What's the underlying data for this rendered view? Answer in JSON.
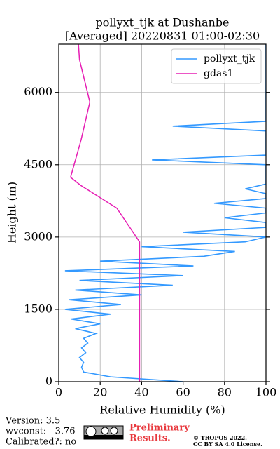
{
  "chart_data": {
    "type": "profile",
    "title": [
      "pollyxt_tjk at Dushanbe",
      "[Averaged] 20220831 01:00-02:30"
    ],
    "xlabel": "Relative Humidity (%)",
    "ylabel": "Height (m)",
    "xlim": [
      0,
      100
    ],
    "xticks": [
      0,
      20,
      40,
      60,
      80,
      100
    ],
    "ylim": [
      0,
      7000
    ],
    "yticks": [
      0,
      1500,
      3000,
      4500,
      6000
    ],
    "grid": true,
    "legend": "upper right",
    "series": [
      {
        "name": "pollyxt_tjk",
        "color": "#3399ff",
        "heights": [
          0,
          100,
          200,
          300,
          400,
          500,
          600,
          700,
          800,
          900,
          1000,
          1100,
          1200,
          1300,
          1400,
          1500,
          1600,
          1700,
          1800,
          1900,
          2000,
          2100,
          2200,
          2300,
          2400,
          2500,
          2600,
          2700,
          2800,
          2900,
          3000,
          3100,
          3200,
          3300,
          3400,
          3500,
          3600,
          3700,
          3800,
          3900,
          4000,
          4100,
          4200,
          4300,
          4400,
          4500,
          4600,
          4700,
          4800,
          4900,
          5000,
          5100,
          5200,
          5300,
          5400,
          5500,
          5600,
          5700,
          5800,
          5900,
          6000,
          6100,
          6200,
          6300,
          6400,
          6500,
          6600,
          6700,
          6800,
          6900,
          7000
        ],
        "values": [
          60,
          25,
          12,
          11,
          12,
          10,
          13,
          11,
          14,
          12,
          18,
          8,
          20,
          6,
          25,
          3,
          30,
          5,
          40,
          8,
          55,
          10,
          60,
          3,
          65,
          20,
          70,
          85,
          40,
          90,
          100,
          60,
          100,
          100,
          80,
          100,
          100,
          75,
          100,
          100,
          90,
          100,
          100,
          100,
          100,
          100,
          45,
          100,
          100,
          100,
          100,
          100,
          100,
          55,
          100,
          100,
          100,
          100,
          100,
          100,
          100,
          100,
          100,
          100,
          100,
          100,
          100,
          100,
          100,
          100,
          100
        ]
      },
      {
        "name": "gdas1",
        "color": "#e61eb4",
        "heights": [
          0,
          2900,
          3600,
          4075,
          4240,
          5020,
          5800,
          6680,
          7000
        ],
        "values": [
          39,
          39,
          28,
          10.5,
          5.7,
          10.8,
          15,
          10,
          9.5
        ]
      }
    ]
  },
  "footer": {
    "version": "Version: 3.5",
    "wvconst": "wvconst:   3.76",
    "calibrated": "Calibrated?: no",
    "preliminary": [
      "Preliminary",
      "Results."
    ],
    "copyright": [
      "© TROPOS 2022.",
      "CC BY SA 4.0 License."
    ]
  }
}
